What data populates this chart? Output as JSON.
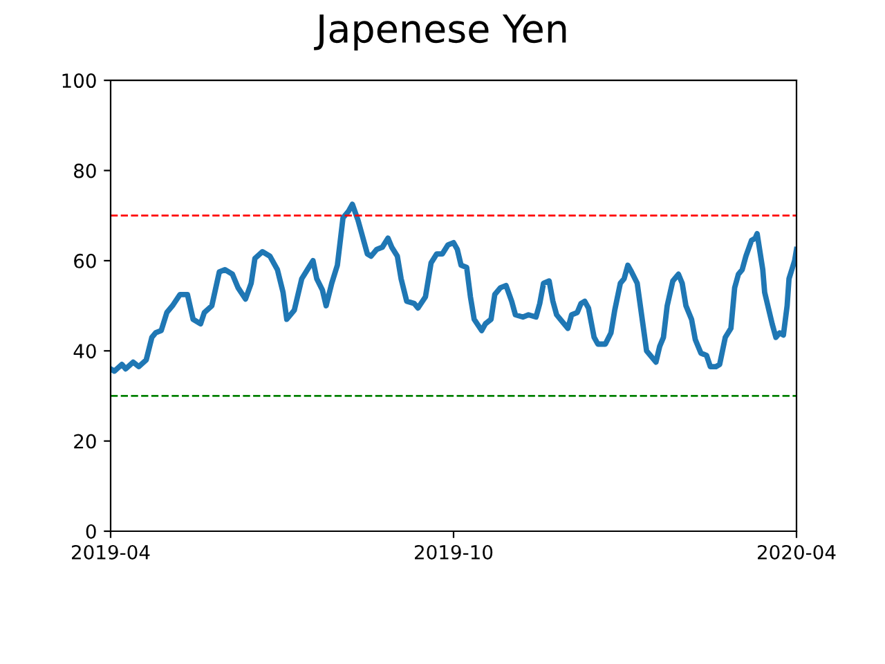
{
  "chart_data": {
    "type": "line",
    "title": "Japenese Yen",
    "x": [
      "2019-04-01",
      "2019-04-03",
      "2019-04-07",
      "2019-04-09",
      "2019-04-13",
      "2019-04-16",
      "2019-04-20",
      "2019-04-23",
      "2019-04-25",
      "2019-04-28",
      "2019-05-01",
      "2019-05-04",
      "2019-05-08",
      "2019-05-12",
      "2019-05-15",
      "2019-05-19",
      "2019-05-21",
      "2019-05-25",
      "2019-05-29",
      "2019-06-01",
      "2019-06-05",
      "2019-06-08",
      "2019-06-12",
      "2019-06-15",
      "2019-06-17",
      "2019-06-21",
      "2019-06-25",
      "2019-06-29",
      "2019-07-02",
      "2019-07-04",
      "2019-07-08",
      "2019-07-12",
      "2019-07-15",
      "2019-07-18",
      "2019-07-20",
      "2019-07-23",
      "2019-07-25",
      "2019-07-28",
      "2019-07-31",
      "2019-08-03",
      "2019-08-06",
      "2019-08-08",
      "2019-08-11",
      "2019-08-13",
      "2019-08-16",
      "2019-08-18",
      "2019-08-21",
      "2019-08-24",
      "2019-08-27",
      "2019-08-29",
      "2019-09-01",
      "2019-09-03",
      "2019-09-06",
      "2019-09-10",
      "2019-09-12",
      "2019-09-16",
      "2019-09-19",
      "2019-09-22",
      "2019-09-25",
      "2019-09-28",
      "2019-10-01",
      "2019-10-03",
      "2019-10-05",
      "2019-10-08",
      "2019-10-10",
      "2019-10-12",
      "2019-10-16",
      "2019-10-18",
      "2019-10-21",
      "2019-10-23",
      "2019-10-26",
      "2019-10-29",
      "2019-11-01",
      "2019-11-03",
      "2019-11-07",
      "2019-11-10",
      "2019-11-14",
      "2019-11-16",
      "2019-11-18",
      "2019-11-21",
      "2019-11-23",
      "2019-11-25",
      "2019-11-28",
      "2019-12-01",
      "2019-12-03",
      "2019-12-06",
      "2019-12-08",
      "2019-12-10",
      "2019-12-12",
      "2019-12-15",
      "2019-12-17",
      "2019-12-21",
      "2019-12-24",
      "2019-12-26",
      "2019-12-29",
      "2019-12-31",
      "2020-01-02",
      "2020-01-04",
      "2020-01-07",
      "2020-01-10",
      "2020-01-12",
      "2020-01-15",
      "2020-01-17",
      "2020-01-19",
      "2020-01-21",
      "2020-01-23",
      "2020-01-26",
      "2020-01-29",
      "2020-01-31",
      "2020-02-02",
      "2020-02-05",
      "2020-02-07",
      "2020-02-10",
      "2020-02-13",
      "2020-02-15",
      "2020-02-18",
      "2020-02-20",
      "2020-02-23",
      "2020-02-26",
      "2020-02-28",
      "2020-03-01",
      "2020-03-03",
      "2020-03-05",
      "2020-03-08",
      "2020-03-10",
      "2020-03-11",
      "2020-03-14",
      "2020-03-15",
      "2020-03-17",
      "2020-03-19",
      "2020-03-21",
      "2020-03-23",
      "2020-03-25",
      "2020-03-27",
      "2020-03-28",
      "2020-03-31",
      "2020-04-01"
    ],
    "series": [
      {
        "color": "#1f77b4",
        "values": [
          36,
          35.5,
          37,
          36,
          37.5,
          36.5,
          38,
          43,
          44,
          44.5,
          48.5,
          50,
          52.5,
          52.5,
          47,
          46,
          48.5,
          50,
          57.5,
          58,
          57,
          54,
          51.5,
          55,
          60.5,
          62,
          61,
          58,
          53,
          47,
          49,
          56,
          58,
          60,
          56,
          53.5,
          50,
          55,
          59,
          69.5,
          71,
          72.5,
          69,
          66,
          61.5,
          61,
          62.5,
          63,
          65,
          63,
          61,
          56,
          51,
          50.5,
          49.5,
          52,
          59.5,
          61.5,
          61.5,
          63.5,
          64,
          62.5,
          59,
          58.5,
          52,
          47,
          44.5,
          46,
          47,
          52.5,
          54,
          54.5,
          51,
          48,
          47.5,
          48,
          47.5,
          50.5,
          55,
          55.5,
          51,
          48,
          46.5,
          45,
          48,
          48.5,
          50.5,
          51,
          49.5,
          43,
          41.5,
          41.5,
          44,
          49,
          55,
          56,
          59,
          57.5,
          55,
          46,
          40,
          38.5,
          37.5,
          41,
          43,
          50,
          55.5,
          57,
          55,
          50,
          47,
          42.5,
          39.5,
          39,
          36.5,
          36.5,
          37,
          43,
          45,
          54,
          57,
          58,
          61,
          64.5,
          65,
          66,
          58,
          53,
          49.5,
          46,
          43,
          44,
          43.5,
          50,
          56,
          60,
          62.5
        ]
      }
    ],
    "xlim": [
      "2019-04",
      "2020-04"
    ],
    "xticks": [
      "2019-04",
      "2019-10",
      "2020-04"
    ],
    "ylim": [
      0,
      100
    ],
    "yticks": [
      0,
      20,
      40,
      60,
      80,
      100
    ],
    "ref_lines": [
      {
        "axis": "y",
        "value": 70,
        "color": "#ff0000",
        "line_style": "dashed"
      },
      {
        "axis": "y",
        "value": 30,
        "color": "#008000",
        "line_style": "dashed"
      }
    ],
    "grid": false,
    "line_style": "solid"
  }
}
